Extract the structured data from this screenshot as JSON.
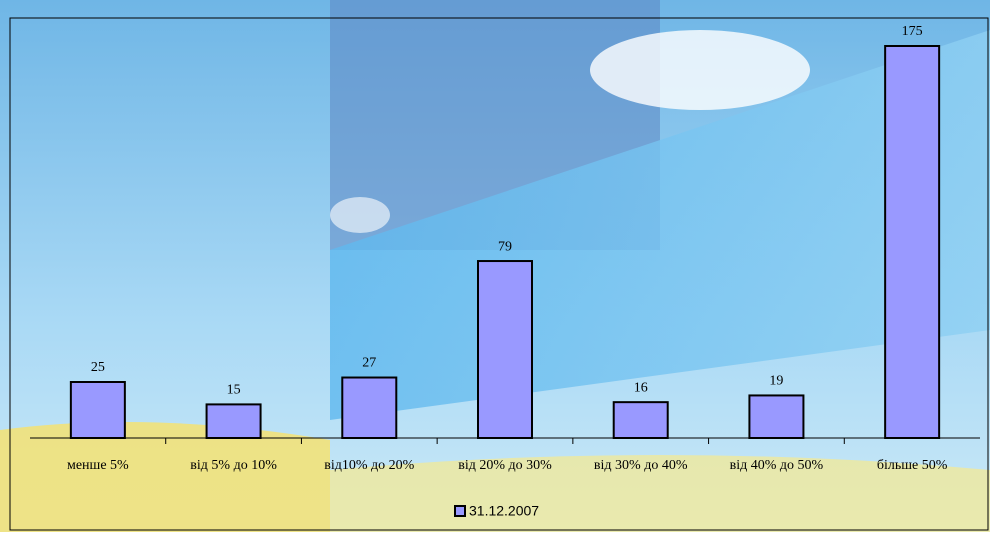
{
  "chart_data": {
    "type": "bar",
    "categories": [
      "менше 5%",
      "від 5% до 10%",
      "від10% до 20%",
      "від 20% до 30%",
      "від 30% до 40%",
      "від 40% до 50%",
      "більше 50%"
    ],
    "series": [
      {
        "name": "31.12.2007",
        "color": "#9999ff",
        "values": [
          25,
          15,
          27,
          79,
          16,
          19,
          175
        ]
      }
    ],
    "legend": "bottom"
  }
}
